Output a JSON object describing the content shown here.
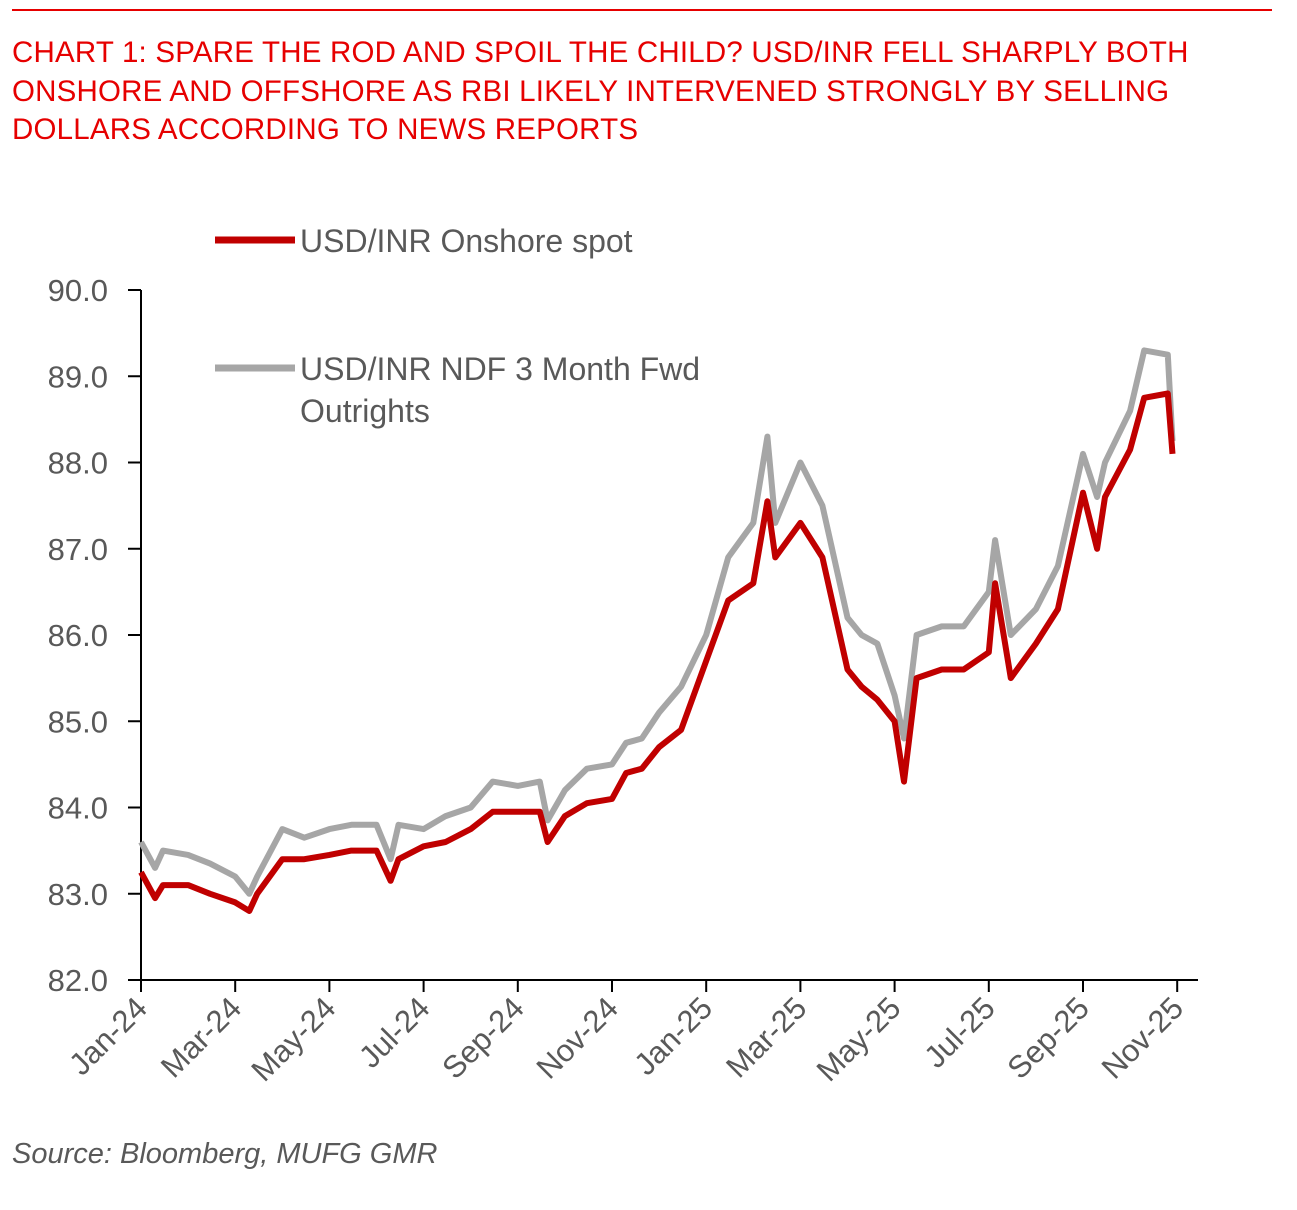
{
  "title": "CHART 1: SPARE THE ROD AND SPOIL THE CHILD? USD/INR FELL SHARPLY BOTH ONSHORE AND OFFSHORE AS RBI LIKELY INTERVENED STRONGLY BY SELLING DOLLARS ACCORDING TO NEWS REPORTS",
  "source": "Source: Bloomberg, MUFG GMR",
  "chart_data": {
    "type": "line",
    "title": "CHART 1: SPARE THE ROD AND SPOIL THE CHILD? USD/INR FELL SHARPLY BOTH ONSHORE AND OFFSHORE AS RBI LIKELY INTERVENED STRONGLY BY SELLING DOLLARS ACCORDING TO NEWS REPORTS",
    "xlabel": "",
    "ylabel": "",
    "ylim": [
      82.0,
      90.0
    ],
    "yticks": [
      "82.0",
      "83.0",
      "84.0",
      "85.0",
      "86.0",
      "87.0",
      "88.0",
      "89.0",
      "90.0"
    ],
    "xticks": [
      "Jan-24",
      "Mar-24",
      "May-24",
      "Jul-24",
      "Sep-24",
      "Nov-24",
      "Jan-25",
      "Mar-25",
      "May-25",
      "Jul-25",
      "Sep-25",
      "Nov-25"
    ],
    "grid": false,
    "legend_placement": "top-left",
    "x": [
      "2024-01-01",
      "2024-01-10",
      "2024-01-15",
      "2024-02-01",
      "2024-02-15",
      "2024-03-01",
      "2024-03-10",
      "2024-03-15",
      "2024-04-01",
      "2024-04-15",
      "2024-05-01",
      "2024-05-15",
      "2024-06-01",
      "2024-06-10",
      "2024-06-15",
      "2024-07-01",
      "2024-07-15",
      "2024-08-01",
      "2024-08-15",
      "2024-09-01",
      "2024-09-15",
      "2024-09-20",
      "2024-10-01",
      "2024-10-15",
      "2024-11-01",
      "2024-11-10",
      "2024-11-20",
      "2024-12-01",
      "2024-12-15",
      "2025-01-01",
      "2025-01-15",
      "2025-02-01",
      "2025-02-10",
      "2025-02-15",
      "2025-03-01",
      "2025-03-15",
      "2025-04-01",
      "2025-04-10",
      "2025-04-20",
      "2025-05-01",
      "2025-05-07",
      "2025-05-15",
      "2025-06-01",
      "2025-06-15",
      "2025-07-01",
      "2025-07-05",
      "2025-07-15",
      "2025-08-01",
      "2025-08-15",
      "2025-09-01",
      "2025-09-10",
      "2025-09-15",
      "2025-10-01",
      "2025-10-10",
      "2025-10-25",
      "2025-10-28"
    ],
    "series": [
      {
        "name": "USD/INR Onshore spot",
        "color": "#c00000",
        "values": [
          83.25,
          82.95,
          83.1,
          83.1,
          83.0,
          82.9,
          82.8,
          83.0,
          83.4,
          83.4,
          83.45,
          83.5,
          83.5,
          83.15,
          83.4,
          83.55,
          83.6,
          83.75,
          83.95,
          83.95,
          83.95,
          83.6,
          83.9,
          84.05,
          84.1,
          84.4,
          84.45,
          84.7,
          84.9,
          85.7,
          86.4,
          86.6,
          87.55,
          86.9,
          87.3,
          86.9,
          85.6,
          85.4,
          85.25,
          85.0,
          84.3,
          85.5,
          85.6,
          85.6,
          85.8,
          86.6,
          85.5,
          85.9,
          86.3,
          87.65,
          87.0,
          87.6,
          88.15,
          88.75,
          88.8,
          88.1
        ]
      },
      {
        "name": "USD/INR NDF 3 Month Fwd Outrights",
        "color": "#a6a6a6",
        "values": [
          83.6,
          83.3,
          83.5,
          83.45,
          83.35,
          83.2,
          83.0,
          83.2,
          83.75,
          83.65,
          83.75,
          83.8,
          83.8,
          83.4,
          83.8,
          83.75,
          83.9,
          84.0,
          84.3,
          84.25,
          84.3,
          83.85,
          84.2,
          84.45,
          84.5,
          84.75,
          84.8,
          85.1,
          85.4,
          86.0,
          86.9,
          87.3,
          88.3,
          87.3,
          88.0,
          87.5,
          86.2,
          86.0,
          85.9,
          85.3,
          84.8,
          86.0,
          86.1,
          86.1,
          86.5,
          87.1,
          86.0,
          86.3,
          86.8,
          88.1,
          87.6,
          88.0,
          88.6,
          89.3,
          89.25,
          88.25
        ]
      }
    ]
  }
}
